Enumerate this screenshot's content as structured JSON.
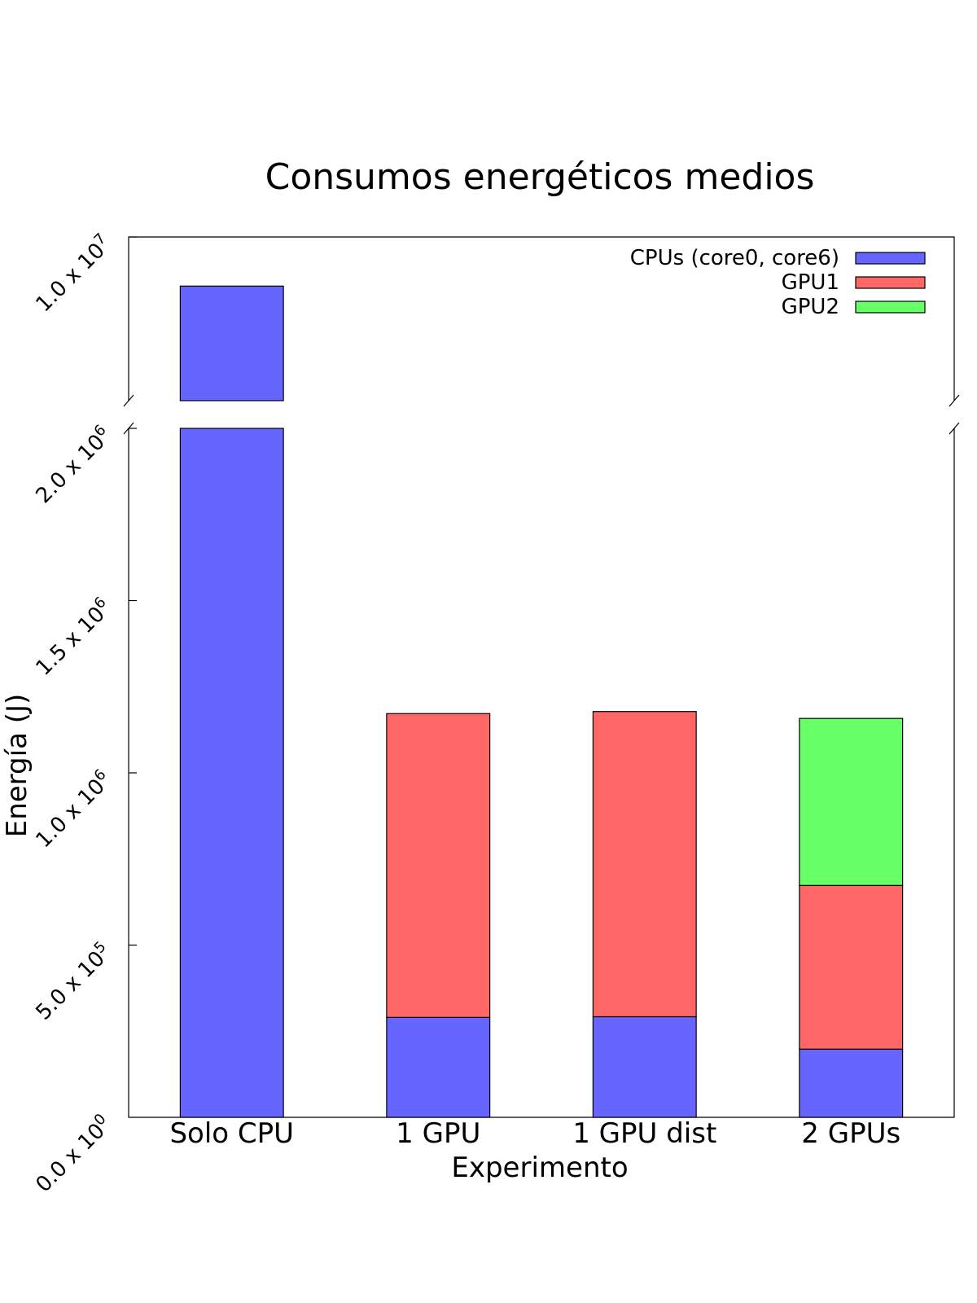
{
  "chart_data": {
    "type": "bar",
    "stacked": true,
    "title": "Consumos energéticos medios",
    "xlabel": "Experimento",
    "ylabel": "Energía (J)",
    "categories": [
      "Solo CPU",
      "1 GPU",
      "1 GPU dist",
      "2 GPUs"
    ],
    "series": [
      {
        "name": "CPUs (core0, core6)",
        "color": "#6666ff",
        "values": [
          8500000,
          290000,
          292000,
          198000
        ]
      },
      {
        "name": "GPU1",
        "color": "#ff6666",
        "values": [
          0,
          882000,
          886000,
          475000
        ]
      },
      {
        "name": "GPU2",
        "color": "#66ff66",
        "values": [
          0,
          0,
          0,
          485000
        ]
      }
    ],
    "broken_axis": {
      "lower_range": [
        0,
        2000000
      ],
      "upper_range": [
        5000000,
        10000000
      ]
    },
    "y_ticks": [
      {
        "value": 0,
        "mantissa": "0.0",
        "exponent": "0"
      },
      {
        "value": 500000,
        "mantissa": "5.0",
        "exponent": "5"
      },
      {
        "value": 1000000,
        "mantissa": "1.0",
        "exponent": "6"
      },
      {
        "value": 1500000,
        "mantissa": "1.5",
        "exponent": "6"
      },
      {
        "value": 2000000,
        "mantissa": "2.0",
        "exponent": "6"
      },
      {
        "value": 10000000,
        "mantissa": "1.0",
        "exponent": "7"
      }
    ],
    "tick_multiplier": "x 10",
    "legend_position": "top-right",
    "grid": false
  }
}
